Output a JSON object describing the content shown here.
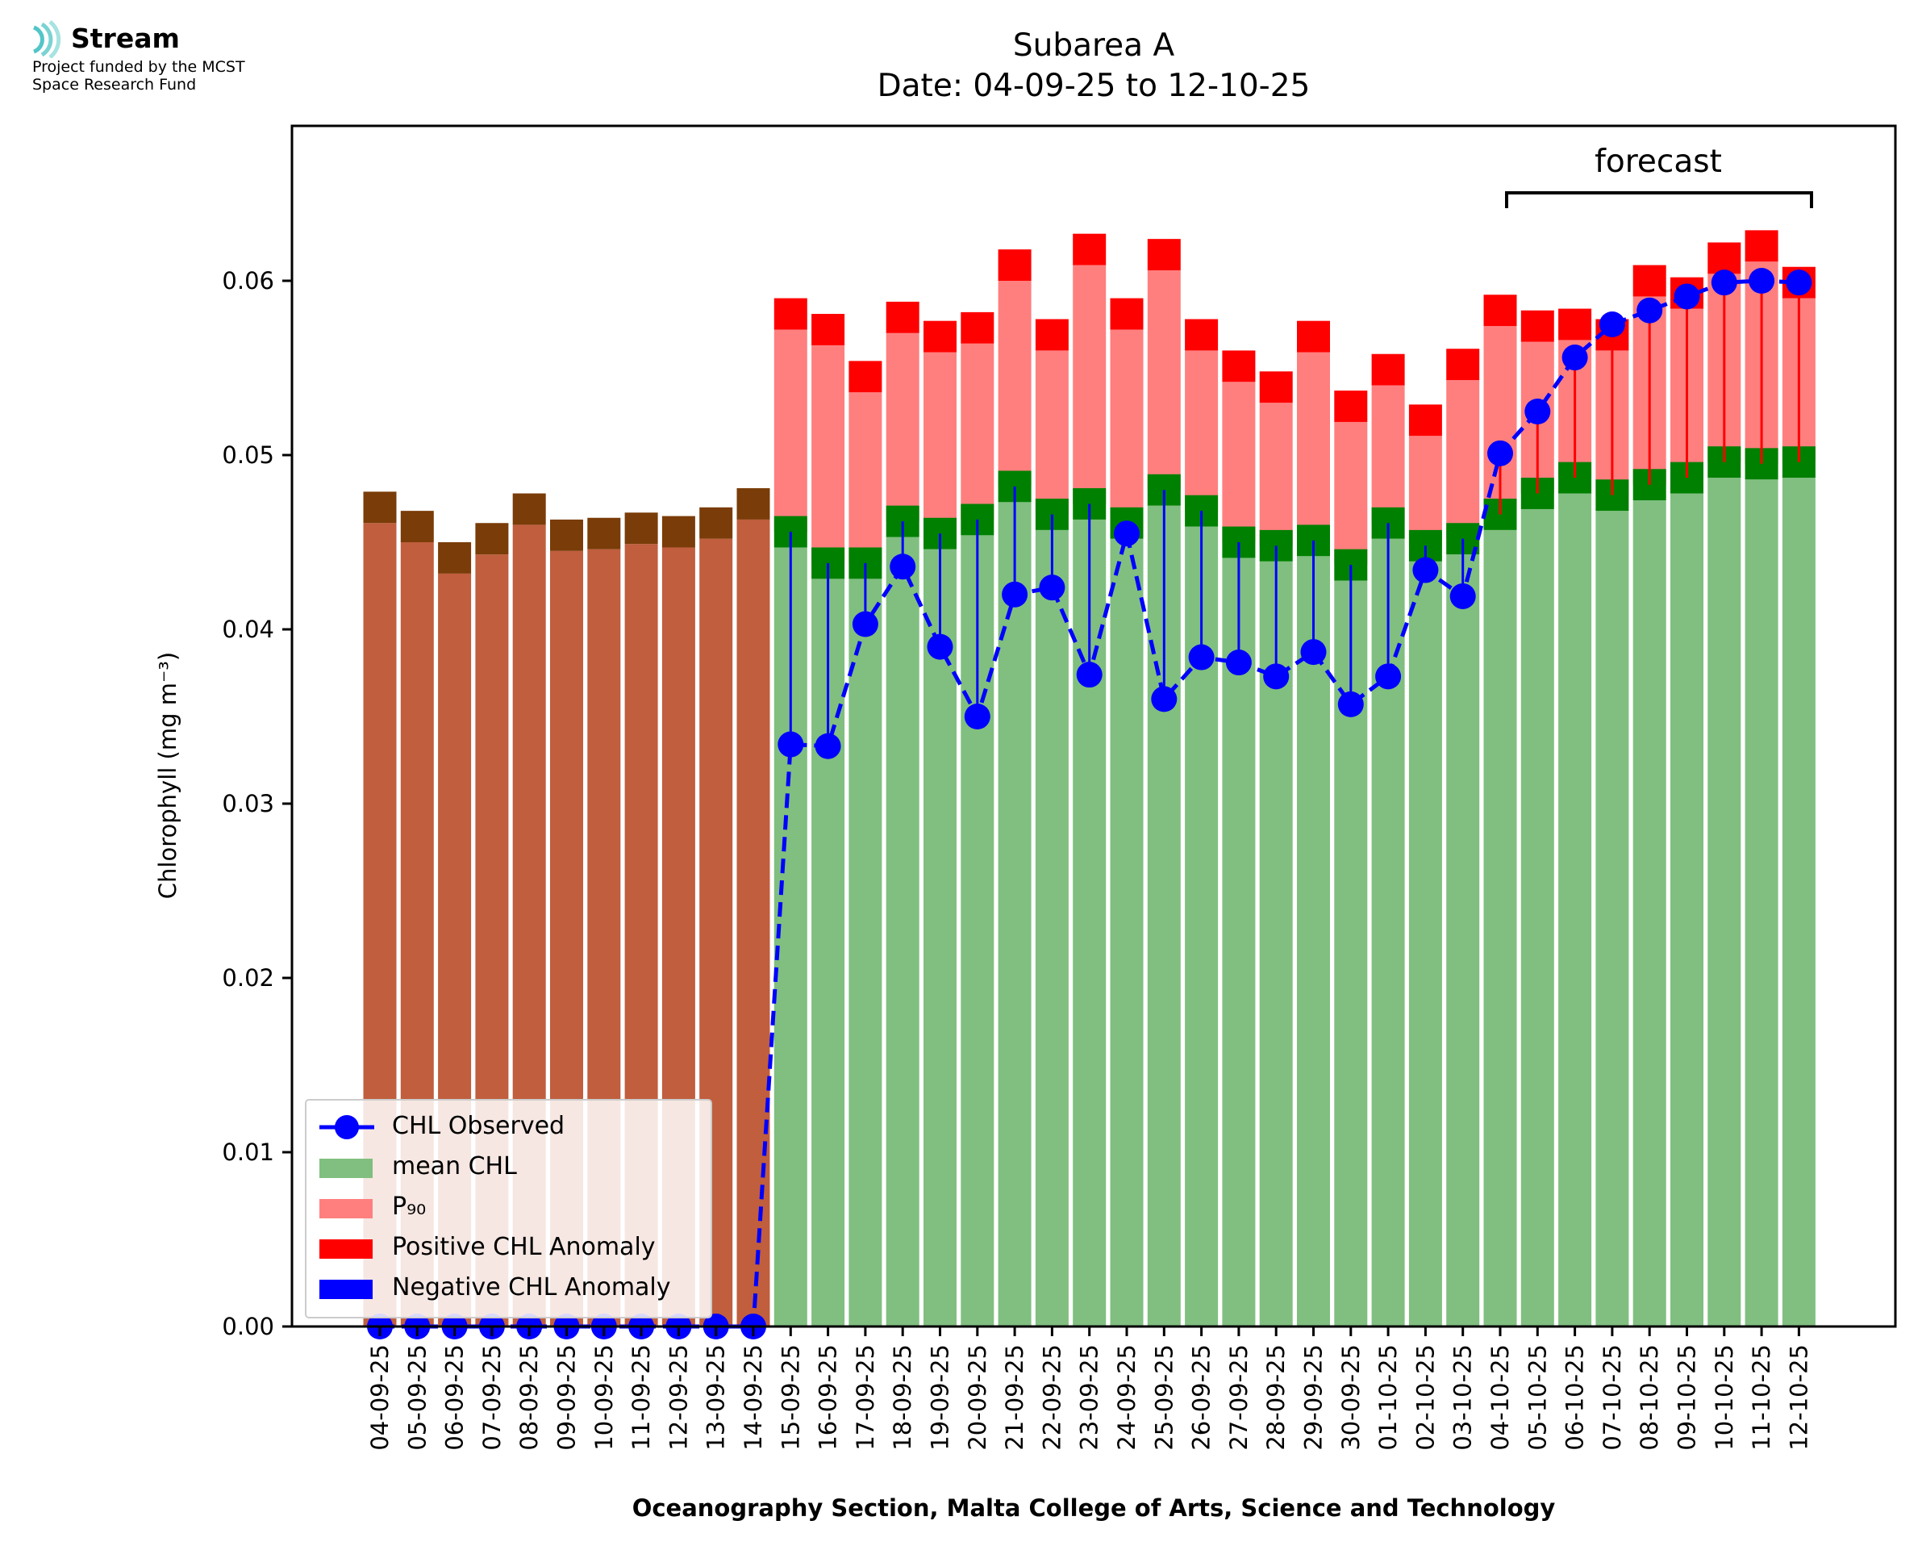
{
  "logo": {
    "name": "Stream",
    "subtitle_line1": "Project funded by the MCST",
    "subtitle_line2": "Space Research Fund"
  },
  "chart_data": {
    "type": "bar",
    "title": "Subarea A",
    "subtitle": "Date: 04-09-25 to 12-10-25",
    "xlabel": "Oceanography Section, Malta College of Arts, Science and Technology",
    "ylabel": "Chlorophyll (mg m⁻³)",
    "ylim": [
      0,
      0.0688
    ],
    "yticks": [
      "0.00",
      "0.01",
      "0.02",
      "0.03",
      "0.04",
      "0.05",
      "0.06"
    ],
    "annotation": "forecast",
    "forecast_range": [
      "04-10-25",
      "12-10-25"
    ],
    "legend_position": "lower-left",
    "categories": [
      "04-09-25",
      "05-09-25",
      "06-09-25",
      "07-09-25",
      "08-09-25",
      "09-09-25",
      "10-09-25",
      "11-09-25",
      "12-09-25",
      "13-09-25",
      "14-09-25",
      "15-09-25",
      "16-09-25",
      "17-09-25",
      "18-09-25",
      "19-09-25",
      "20-09-25",
      "21-09-25",
      "22-09-25",
      "23-09-25",
      "24-09-25",
      "25-09-25",
      "26-09-25",
      "27-09-25",
      "28-09-25",
      "29-09-25",
      "30-09-25",
      "01-10-25",
      "02-10-25",
      "03-10-25",
      "04-10-25",
      "05-10-25",
      "06-10-25",
      "07-10-25",
      "08-10-25",
      "09-10-25",
      "10-10-25",
      "11-10-25",
      "12-10-25"
    ],
    "series": [
      {
        "name": "CHL Observed",
        "color": "#0000ff",
        "style": "dashed-line-with-markers",
        "values": [
          0,
          0,
          0,
          0,
          0,
          0,
          0,
          0,
          0,
          0,
          0,
          0.0334,
          0.0333,
          0.0403,
          0.0436,
          0.039,
          0.035,
          0.042,
          0.0424,
          0.0374,
          0.0455,
          0.036,
          0.0384,
          0.0381,
          0.0373,
          0.0387,
          0.0357,
          0.0373,
          0.0434,
          0.0419,
          0.0501,
          0.0525,
          0.0556,
          0.0575,
          0.0583,
          0.0591,
          0.0599,
          0.06,
          0.0599
        ]
      },
      {
        "name": "mean CHL",
        "color": "#80bf80",
        "values": [
          0.047,
          0.0459,
          0.0441,
          0.0452,
          0.0469,
          0.0454,
          0.0455,
          0.0458,
          0.0456,
          0.0461,
          0.0472,
          0.0456,
          0.0438,
          0.0438,
          0.0462,
          0.0455,
          0.0463,
          0.0482,
          0.0466,
          0.0472,
          0.0461,
          0.048,
          0.0468,
          0.045,
          0.0448,
          0.0451,
          0.0437,
          0.0461,
          0.0448,
          0.0452,
          0.0466,
          0.0478,
          0.0487,
          0.0477,
          0.0483,
          0.0487,
          0.0496,
          0.0495,
          0.0496
        ]
      },
      {
        "name": "P₉₀",
        "color": "#ff7f7f",
        "values": [
          null,
          null,
          null,
          null,
          null,
          null,
          null,
          null,
          null,
          null,
          null,
          0.0581,
          0.0572,
          0.0545,
          0.0579,
          0.0568,
          0.0573,
          0.0609,
          0.0569,
          0.0618,
          0.0581,
          0.0615,
          0.0569,
          0.0551,
          0.0539,
          0.0568,
          0.0528,
          0.0549,
          0.052,
          0.0552,
          0.0583,
          0.0574,
          0.0575,
          0.0569,
          0.06,
          0.0593,
          0.0613,
          0.062,
          0.0599
        ]
      },
      {
        "name": "Positive CHL Anomaly",
        "color": "#ff0000"
      },
      {
        "name": "Negative CHL Anomaly",
        "color": "#0000ff"
      }
    ],
    "colors": {
      "historical_bar": "#c05e3e",
      "historical_cap": "#7a3c08",
      "mean_cap": "#008000",
      "p90_cap": "#ff0000",
      "positive_anomaly": "#ff0000",
      "negative_anomaly": "#0000ff"
    }
  }
}
